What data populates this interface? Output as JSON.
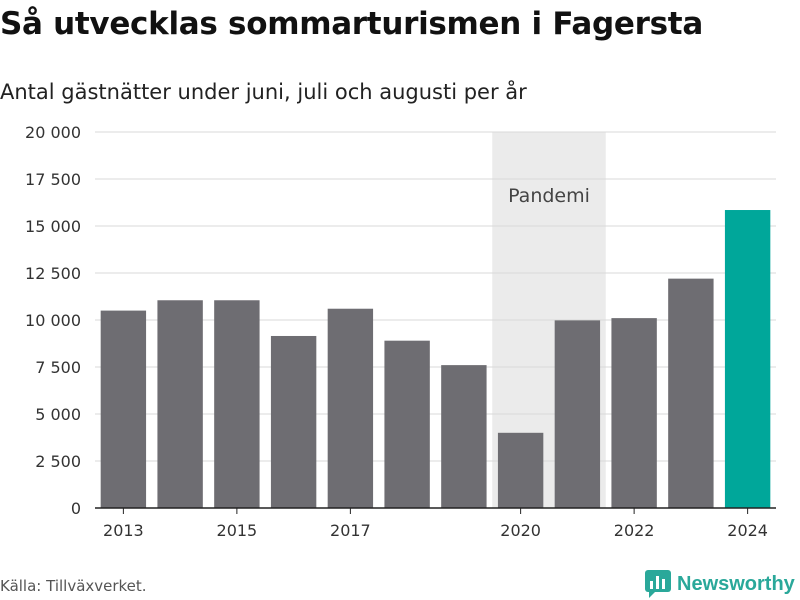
{
  "title": "Så utvecklas sommarturismen i Fagersta",
  "subtitle": "Antal gästnätter under juni, juli och augusti per år",
  "source": "Källa: Tillväxverket.",
  "brand": "Newsworthy",
  "colors": {
    "bar": "#6e6d72",
    "highlight": "#00a79a",
    "shade": "#ebebeb",
    "grid": "#d9d9d9",
    "brand": "#2aa89a"
  },
  "chart_data": {
    "type": "bar",
    "x": [
      2013,
      2014,
      2015,
      2016,
      2017,
      2018,
      2019,
      2020,
      2021,
      2022,
      2023,
      2024
    ],
    "values": [
      10500,
      11050,
      11050,
      9150,
      10600,
      8900,
      7600,
      4000,
      9980,
      10100,
      12200,
      15850
    ],
    "highlight": 2024,
    "xtick_values": [
      2013,
      2015,
      2017,
      2020,
      2022,
      2024
    ],
    "xtick_labels": [
      "2013",
      "2015",
      "2017",
      "2020",
      "2022",
      "2024"
    ],
    "yticks": [
      0,
      2500,
      5000,
      7500,
      10000,
      12500,
      15000,
      17500,
      20000
    ],
    "ytick_labels": [
      "0",
      "2 500",
      "5 000",
      "7 500",
      "10 000",
      "12 500",
      "15 000",
      "17 500",
      "20 000"
    ],
    "ylim": [
      0,
      20000
    ],
    "annotation": {
      "label": "Pandemi",
      "from": 2020,
      "to": 2021
    },
    "grid": true
  }
}
